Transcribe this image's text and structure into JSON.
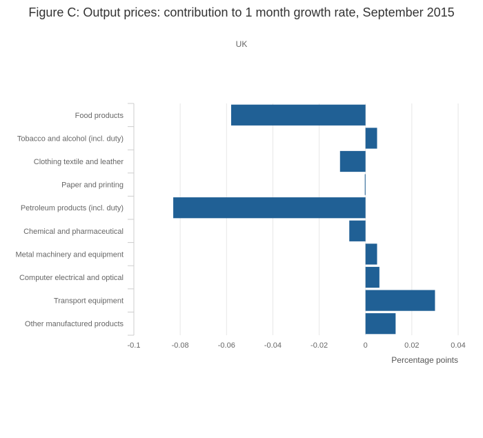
{
  "chart_data": {
    "type": "bar",
    "orientation": "horizontal",
    "title": "Figure C: Output prices: contribution to 1 month growth rate, September 2015",
    "subtitle": "UK",
    "xlabel": "Percentage points",
    "ylabel": "",
    "xlim": [
      -0.1,
      0.04
    ],
    "xticks": [
      -0.1,
      -0.08,
      -0.06,
      -0.04,
      -0.02,
      0,
      0.02,
      0.04
    ],
    "xtick_labels": [
      "-0.1",
      "-0.08",
      "-0.06",
      "-0.04",
      "-0.02",
      "0",
      "0.02",
      "0.04"
    ],
    "grid": true,
    "bar_color": "#206095",
    "categories": [
      "Food products",
      "Tobacco and alcohol (incl. duty)",
      "Clothing textile and leather",
      "Paper and printing",
      "Petroleum products (incl. duty)",
      "Chemical and pharmaceutical",
      "Metal machinery and equipment",
      "Computer electrical and optical",
      "Transport equipment",
      "Other manufactured products"
    ],
    "values": [
      -0.058,
      0.005,
      -0.011,
      -0.0003,
      -0.083,
      -0.007,
      0.005,
      0.006,
      0.03,
      0.013
    ]
  }
}
